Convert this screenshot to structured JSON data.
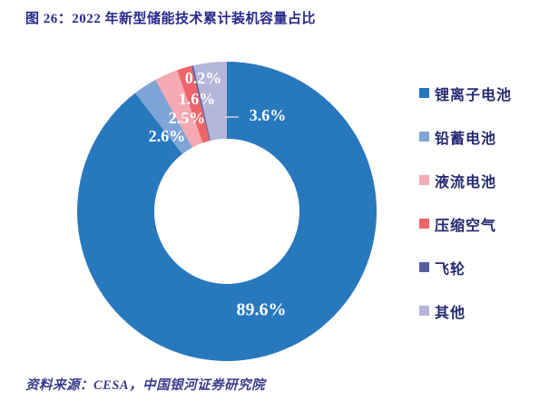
{
  "page": {
    "title": "图 26：2022 年新型储能技术累计装机容量占比",
    "source_note": "资料来源：CESA，中国银河证券研究院",
    "background": "#FFFFFF"
  },
  "style": {
    "title_color": "#29298C",
    "legend_text_color": "#252A70",
    "source_color": "#3C3C8E",
    "slice_label_color": "#FFFFFF",
    "leader_line_color": "#CCD2DA"
  },
  "chart_data": {
    "type": "pie",
    "subtype": "donut",
    "title": "2022 年新型储能技术累计装机容量占比",
    "unit": "%",
    "start_angle": "12-o'clock",
    "direction": "clockwise",
    "legend_position": "right",
    "categories": [
      "锂离子电池",
      "铅蓄电池",
      "液流电池",
      "压缩空气",
      "飞轮",
      "其他"
    ],
    "values": [
      89.6,
      2.6,
      2.5,
      1.6,
      0.2,
      3.6
    ],
    "series": [
      {
        "name": "锂离子电池",
        "value": 89.6,
        "label": "89.6%",
        "color": "#2878BE"
      },
      {
        "name": "铅蓄电池",
        "value": 2.6,
        "label": "2.6%",
        "color": "#7FA5D6"
      },
      {
        "name": "液流电池",
        "value": 2.5,
        "label": "2.5%",
        "color": "#F4A9B3"
      },
      {
        "name": "压缩空气",
        "value": 1.6,
        "label": "1.6%",
        "color": "#EE6468"
      },
      {
        "name": "飞轮",
        "value": 0.2,
        "label": "0.2%",
        "color": "#565DA3"
      },
      {
        "name": "其他",
        "value": 3.6,
        "label": "3.6%",
        "color": "#B3B6D8"
      }
    ]
  }
}
